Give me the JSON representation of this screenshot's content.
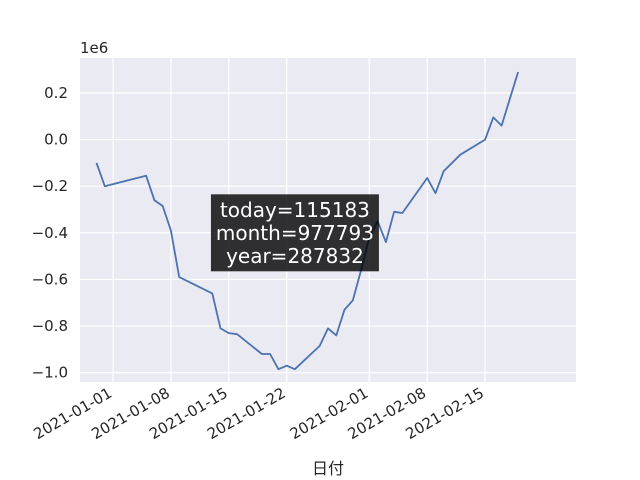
{
  "chart_data": {
    "type": "line",
    "xlabel": "日付",
    "ylabel": "",
    "y_multiplier": "1e6",
    "xlim": [
      "2020-12-28",
      "2021-02-26"
    ],
    "ylim": [
      -1040000,
      350000
    ],
    "x_ticks": [
      "2021-01-01",
      "2021-01-08",
      "2021-01-15",
      "2021-01-22",
      "2021-02-01",
      "2021-02-08",
      "2021-02-15"
    ],
    "y_ticks": [
      {
        "value": -1000000,
        "label": "−1.0"
      },
      {
        "value": -800000,
        "label": "−0.8"
      },
      {
        "value": -600000,
        "label": "−0.6"
      },
      {
        "value": -400000,
        "label": "−0.4"
      },
      {
        "value": -200000,
        "label": "−0.2"
      },
      {
        "value": 0,
        "label": "0.0"
      },
      {
        "value": 200000,
        "label": "0.2"
      }
    ],
    "grid": true,
    "series": [
      {
        "color": "#4c72b0",
        "points": [
          [
            "2020-12-30",
            -100000
          ],
          [
            "2020-12-31",
            -200000
          ],
          [
            "2021-01-05",
            -155000
          ],
          [
            "2021-01-06",
            -260000
          ],
          [
            "2021-01-07",
            -285000
          ],
          [
            "2021-01-08",
            -390000
          ],
          [
            "2021-01-09",
            -590000
          ],
          [
            "2021-01-13",
            -660000
          ],
          [
            "2021-01-14",
            -810000
          ],
          [
            "2021-01-15",
            -830000
          ],
          [
            "2021-01-16",
            -835000
          ],
          [
            "2021-01-19",
            -920000
          ],
          [
            "2021-01-20",
            -920000
          ],
          [
            "2021-01-21",
            -985000
          ],
          [
            "2021-01-22",
            -970000
          ],
          [
            "2021-01-23",
            -985000
          ],
          [
            "2021-01-26",
            -885000
          ],
          [
            "2021-01-27",
            -810000
          ],
          [
            "2021-01-28",
            -840000
          ],
          [
            "2021-01-29",
            -730000
          ],
          [
            "2021-01-30",
            -690000
          ],
          [
            "2021-01-31",
            -560000
          ],
          [
            "2021-02-01",
            -420000
          ],
          [
            "2021-02-02",
            -350000
          ],
          [
            "2021-02-03",
            -440000
          ],
          [
            "2021-02-04",
            -310000
          ],
          [
            "2021-02-05",
            -315000
          ],
          [
            "2021-02-08",
            -165000
          ],
          [
            "2021-02-09",
            -230000
          ],
          [
            "2021-02-10",
            -135000
          ],
          [
            "2021-02-12",
            -65000
          ],
          [
            "2021-02-15",
            0
          ],
          [
            "2021-02-16",
            95000
          ],
          [
            "2021-02-17",
            60000
          ],
          [
            "2021-02-19",
            290000
          ]
        ]
      }
    ],
    "annotation": {
      "lines": [
        "today=115183",
        "month=977793",
        "year=287832"
      ],
      "anchor_x": "2021-01-23",
      "anchor_y": -400000
    }
  }
}
